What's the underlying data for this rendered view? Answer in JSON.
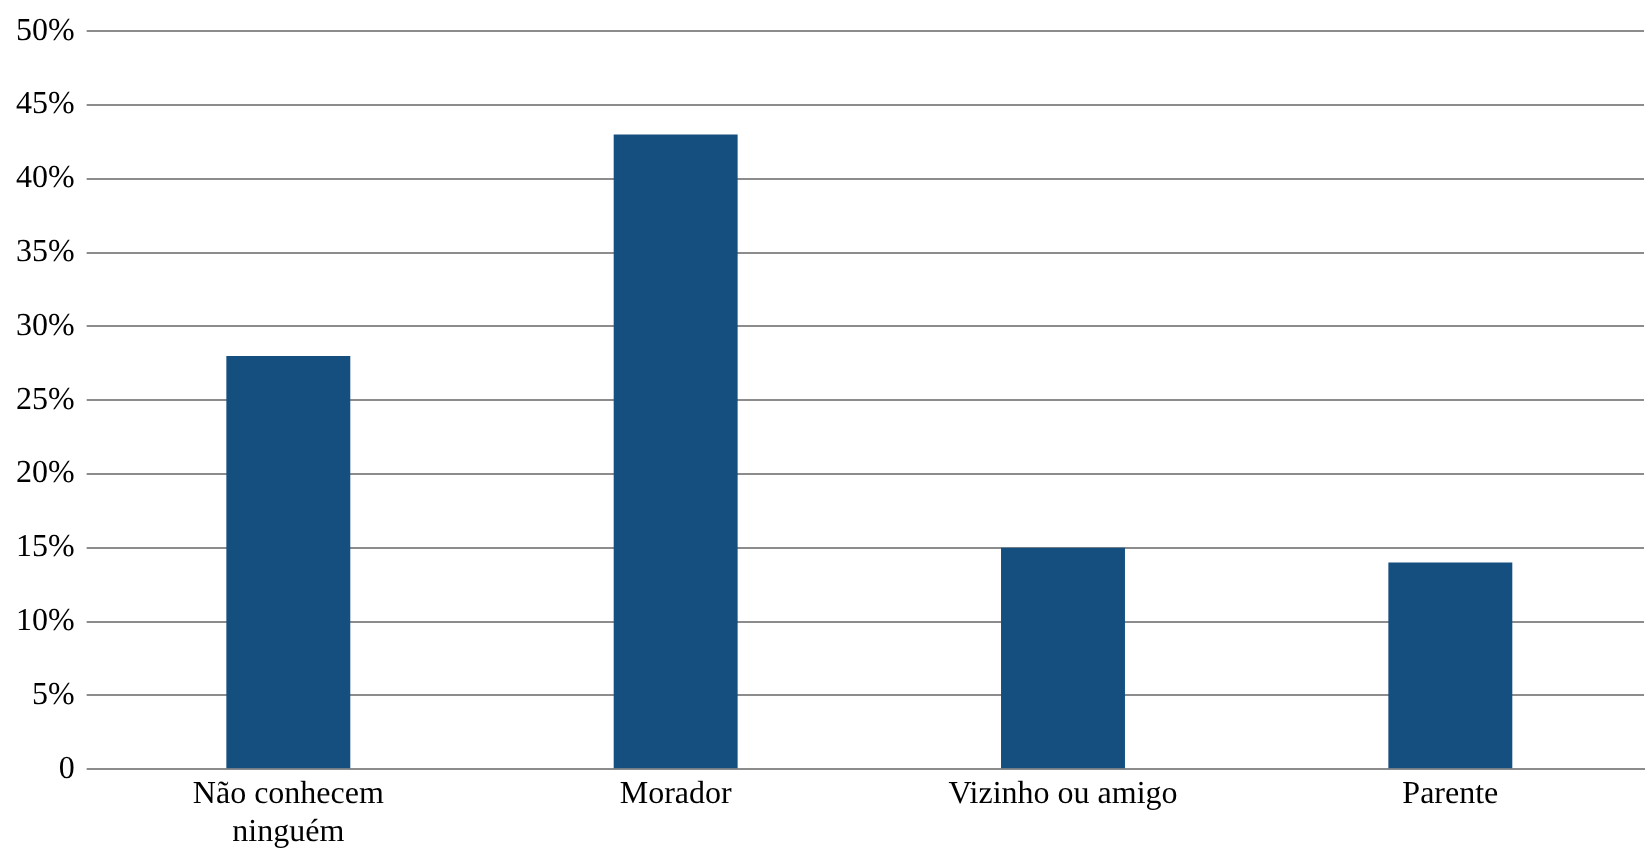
{
  "chart_data": {
    "type": "bar",
    "categories": [
      "Não conhecem ninguém",
      "Morador",
      "Vizinho ou amigo",
      "Parente"
    ],
    "values": [
      28,
      43,
      15,
      14
    ],
    "color": "#154f80",
    "ylim": [
      0,
      50
    ],
    "yticks": [
      {
        "value": 0,
        "label": "0"
      },
      {
        "value": 5,
        "label": "5%"
      },
      {
        "value": 10,
        "label": "10%"
      },
      {
        "value": 15,
        "label": "15%"
      },
      {
        "value": 20,
        "label": "20%"
      },
      {
        "value": 25,
        "label": "25%"
      },
      {
        "value": 30,
        "label": "30%"
      },
      {
        "value": 35,
        "label": "35%"
      },
      {
        "value": 40,
        "label": "40%"
      },
      {
        "value": 45,
        "label": "45%"
      },
      {
        "value": 50,
        "label": "50%"
      }
    ],
    "grid": "y",
    "legend": false
  }
}
